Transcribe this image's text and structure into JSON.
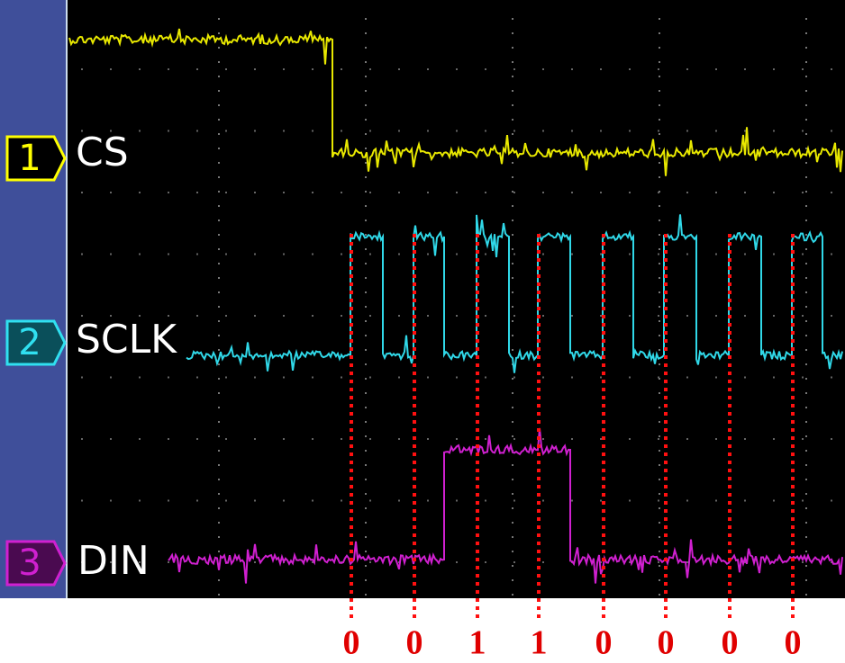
{
  "channels": [
    {
      "number": "1",
      "label": "CS"
    },
    {
      "number": "2",
      "label": "SCLK"
    },
    {
      "number": "3",
      "label": "DIN"
    }
  ],
  "bits": [
    "0",
    "0",
    "1",
    "1",
    "0",
    "0",
    "0",
    "0"
  ]
}
